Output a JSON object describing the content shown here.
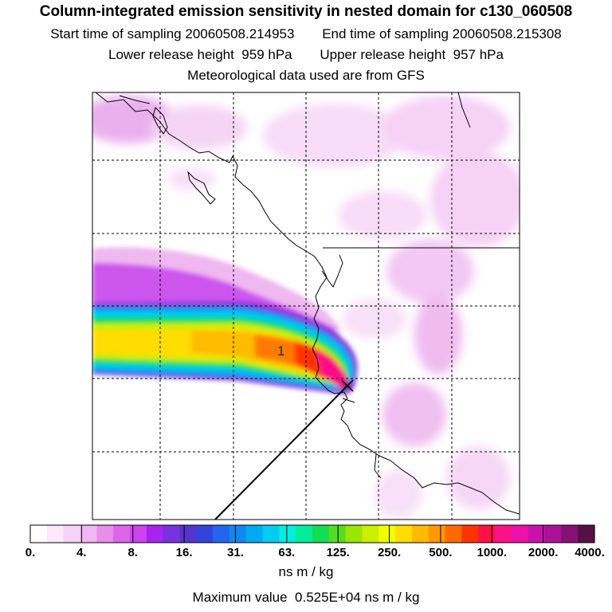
{
  "title": "Column-integrated emission sensitivity in nested domain for c130_060508",
  "sampling": {
    "start_label": "Start time of sampling",
    "start_value": "20060508.214953",
    "end_label": "End time of sampling",
    "end_value": "20060508.215308"
  },
  "release": {
    "lower_label": "Lower release height",
    "lower_value": "959 hPa",
    "upper_label": "Upper release height",
    "upper_value": "957 hPa"
  },
  "met_note": "Meteorological data used are from GFS",
  "map": {
    "grid": "dashed",
    "release_marker_label": "1"
  },
  "legend": {
    "ticks": [
      "0.",
      "4.",
      "8.",
      "16.",
      "31.",
      "63.",
      "125.",
      "250.",
      "500.",
      "1000.",
      "2000.",
      "4000."
    ],
    "colors": [
      "#ffffff",
      "#fbe8fb",
      "#f6d2f6",
      "#f0b8f0",
      "#e88ee8",
      "#dd66e8",
      "#cc44ee",
      "#aa22ee",
      "#7733dd",
      "#5533cc",
      "#3344dd",
      "#2266ee",
      "#1188f0",
      "#00aaf5",
      "#00ccf0",
      "#00eedd",
      "#00ee99",
      "#11dd55",
      "#55dd22",
      "#99e600",
      "#ccee00",
      "#eeff00",
      "#ffdd00",
      "#ffbb00",
      "#ff9900",
      "#ff6a00",
      "#ff3300",
      "#ff1144",
      "#ff1188",
      "#ee11aa",
      "#cc11aa",
      "#aa1199",
      "#881177",
      "#551144"
    ],
    "unit": "ns m / kg"
  },
  "max_label": "Maximum value",
  "max_value": "0.525E+04 ns m / kg"
}
